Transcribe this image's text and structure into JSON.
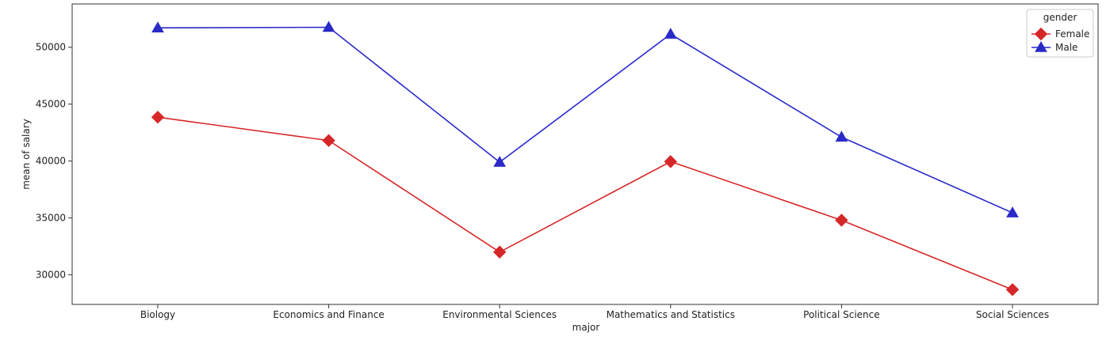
{
  "chart_data": {
    "type": "line",
    "xlabel": "major",
    "ylabel": "mean of salary",
    "categories": [
      "Biology",
      "Economics and Finance",
      "Environmental Sciences",
      "Mathematics and Statistics",
      "Political Science",
      "Social Sciences"
    ],
    "yticks": [
      30000,
      35000,
      40000,
      45000,
      50000
    ],
    "ylim": [
      27400,
      53800
    ],
    "grid": false,
    "legend": {
      "title": "gender",
      "placement": "top-right"
    },
    "series": [
      {
        "name": "Female",
        "color": "#d62728",
        "marker": "diamond",
        "values": [
          43850,
          41800,
          32000,
          39950,
          34800,
          28700
        ]
      },
      {
        "name": "Male",
        "color": "#2a2ac8",
        "marker": "triangle",
        "values": [
          51700,
          51750,
          39900,
          51150,
          42100,
          35450
        ]
      }
    ]
  }
}
